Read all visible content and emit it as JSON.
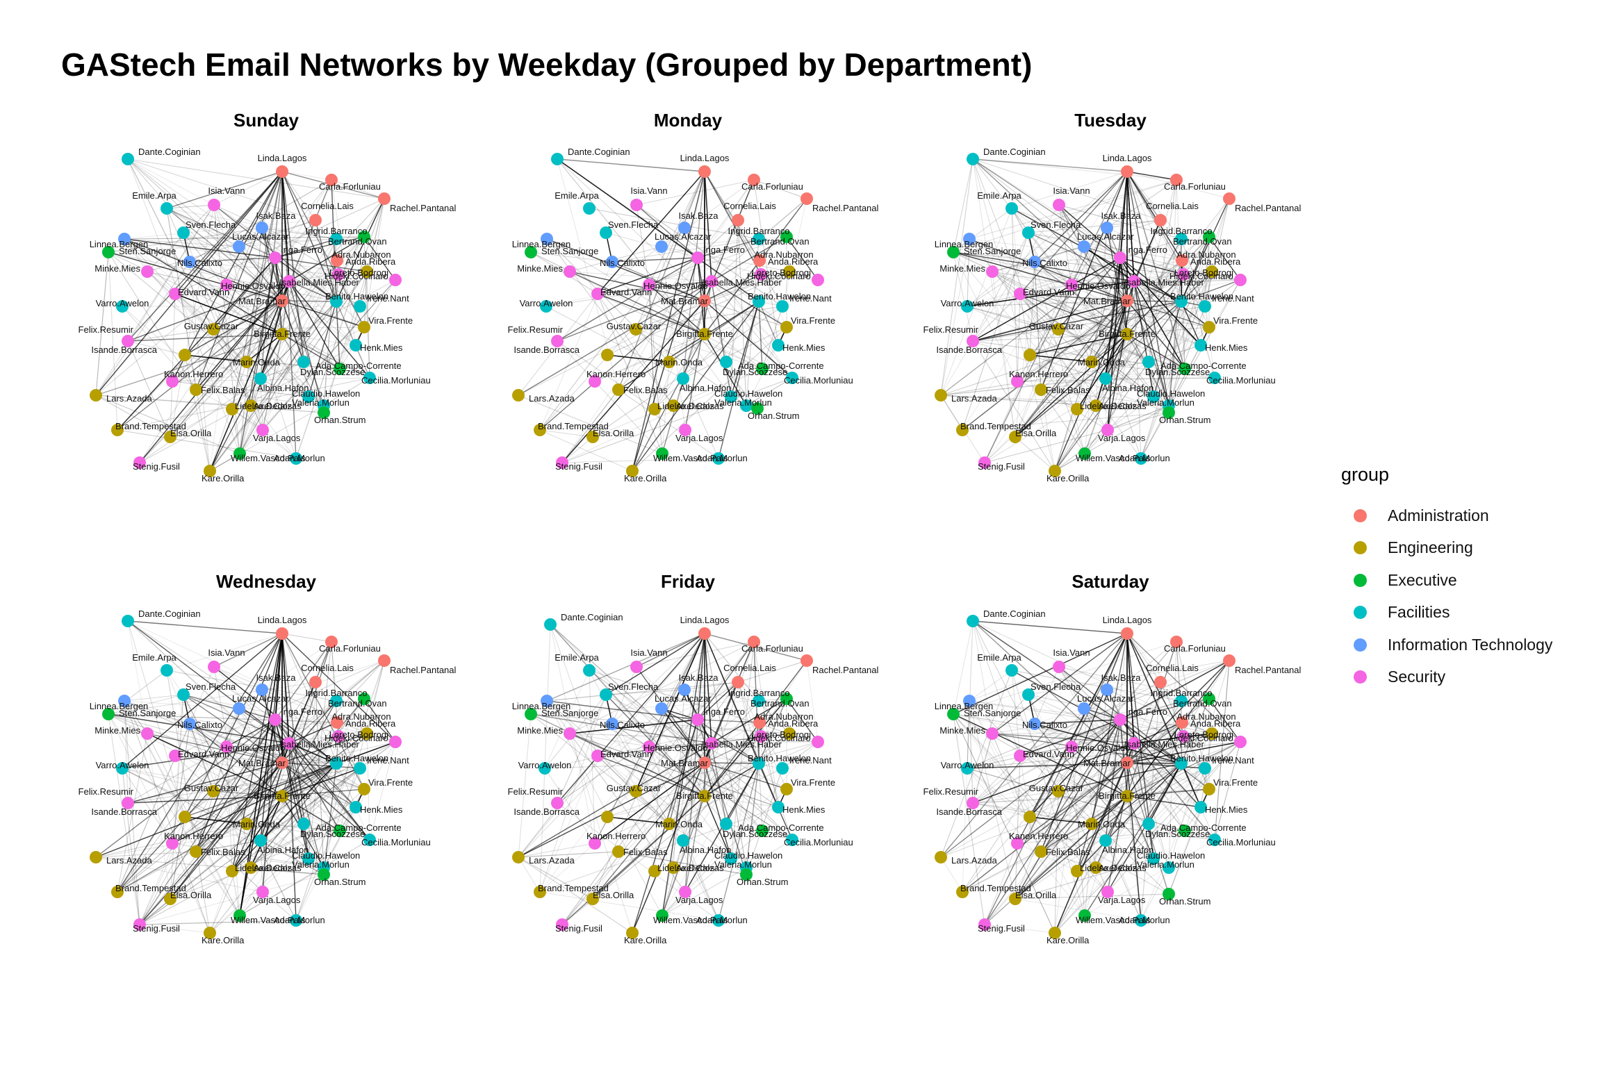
{
  "title": "GAStech Email Networks by Weekday (Grouped by Department)",
  "legend": {
    "title": "group",
    "items": [
      {
        "label": "Administration",
        "color": "#F8766D"
      },
      {
        "label": "Engineering",
        "color": "#B79F00"
      },
      {
        "label": "Executive",
        "color": "#00BA38"
      },
      {
        "label": "Facilities",
        "color": "#00BFC4"
      },
      {
        "label": "Information Technology",
        "color": "#619CFF"
      },
      {
        "label": "Security",
        "color": "#F564E3"
      }
    ]
  },
  "panels": [
    {
      "title": "Sunday"
    },
    {
      "title": "Monday"
    },
    {
      "title": "Tuesday"
    },
    {
      "title": "Wednesday"
    },
    {
      "title": "Friday"
    },
    {
      "title": "Saturday"
    }
  ],
  "nodes": [
    {
      "name": "Dante.Coginian",
      "group": "Facilities"
    },
    {
      "name": "Linda.Lagos",
      "group": "Administration"
    },
    {
      "name": "Carla.Forluniau",
      "group": "Administration"
    },
    {
      "name": "Rachel.Pantanal",
      "group": "Administration"
    },
    {
      "name": "Emile.Arpa",
      "group": "Facilities"
    },
    {
      "name": "Isia.Vann",
      "group": "Security"
    },
    {
      "name": "Cornelia.Lais",
      "group": "Administration"
    },
    {
      "name": "Isak.Baza",
      "group": "Information Technology"
    },
    {
      "name": "Ingrid.Barranco",
      "group": "Executive"
    },
    {
      "name": "Bertrand.Ovan",
      "group": "Facilities"
    },
    {
      "name": "Sven.Flecha",
      "group": "Facilities"
    },
    {
      "name": "Linnea.Bergen",
      "group": "Information Technology"
    },
    {
      "name": "Adra.Nubarron",
      "group": "Engineering"
    },
    {
      "name": "Lucas.Alcazar",
      "group": "Information Technology"
    },
    {
      "name": "Sten.Sanjorge",
      "group": "Executive"
    },
    {
      "name": "Inga.Ferro",
      "group": "Security"
    },
    {
      "name": "Anda.Ribera",
      "group": "Administration"
    },
    {
      "name": "Nils.Calixto",
      "group": "Information Technology"
    },
    {
      "name": "Minke.Mies",
      "group": "Security"
    },
    {
      "name": "Hideki.Cocinaro",
      "group": "Security"
    },
    {
      "name": "Loreto.Bodrogi",
      "group": "Security"
    },
    {
      "name": "Hennie.Osvaldo",
      "group": "Security"
    },
    {
      "name": "Isabella.Mies.Haber",
      "group": "Security"
    },
    {
      "name": "Edvard.Vann",
      "group": "Security"
    },
    {
      "name": "Mat.Bramar",
      "group": "Administration"
    },
    {
      "name": "Benito.Hawelon",
      "group": "Facilities"
    },
    {
      "name": "Irene.Nant",
      "group": "Facilities"
    },
    {
      "name": "Varro.Awelon",
      "group": "Facilities"
    },
    {
      "name": "Felix.Resumir",
      "group": "Security"
    },
    {
      "name": "Gustav.Cazar",
      "group": "Engineering"
    },
    {
      "name": "Birgitta.Frente",
      "group": "Engineering"
    },
    {
      "name": "Vira.Frente",
      "group": "Engineering"
    },
    {
      "name": "Henk.Mies",
      "group": "Facilities"
    },
    {
      "name": "Isande.Borrasca",
      "group": "Engineering"
    },
    {
      "name": "Marin.Onda",
      "group": "Engineering"
    },
    {
      "name": "Albina.Hafon",
      "group": "Facilities"
    },
    {
      "name": "Dylan.Scozzese",
      "group": "Facilities"
    },
    {
      "name": "Ada.Campo-Corrente",
      "group": "Executive"
    },
    {
      "name": "Cecilia.Morluniau",
      "group": "Facilities"
    },
    {
      "name": "Kanon.Herrero",
      "group": "Security"
    },
    {
      "name": "Felix.Balas",
      "group": "Engineering"
    },
    {
      "name": "Lars.Azada",
      "group": "Engineering"
    },
    {
      "name": "Claudio.Hawelon",
      "group": "Facilities"
    },
    {
      "name": "Valeria.Morlun",
      "group": "Facilities"
    },
    {
      "name": "Lidelse.Dedos",
      "group": "Engineering"
    },
    {
      "name": "Axel.Calzas",
      "group": "Engineering"
    },
    {
      "name": "Orhan.Strum",
      "group": "Executive"
    },
    {
      "name": "Brand.Tempestad",
      "group": "Engineering"
    },
    {
      "name": "Varja.Lagos",
      "group": "Security"
    },
    {
      "name": "Elsa.Orilla",
      "group": "Engineering"
    },
    {
      "name": "Willem.Vasco-Pais",
      "group": "Executive"
    },
    {
      "name": "Adan.Morlun",
      "group": "Facilities"
    },
    {
      "name": "Stenig.Fusil",
      "group": "Security"
    },
    {
      "name": "Kare.Orilla",
      "group": "Engineering"
    }
  ]
}
